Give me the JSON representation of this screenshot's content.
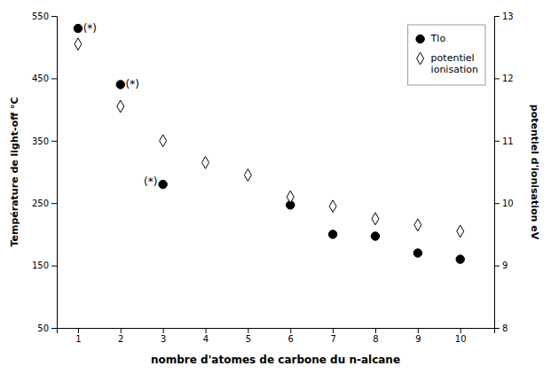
{
  "chart_data": {
    "type": "scatter",
    "xlabel": "nombre d'atomes de carbone du n-alcane",
    "ylabel": "Température de light-off °C",
    "y2label": "potentiel d'ionisation eV",
    "x": [
      1,
      2,
      3,
      4,
      5,
      6,
      7,
      8,
      9,
      10
    ],
    "series": [
      {
        "name": "Tlo",
        "color": "#000000",
        "marker": "circle",
        "values": [
          530,
          440,
          280,
          null,
          null,
          247,
          200,
          197,
          170,
          160
        ]
      },
      {
        "name": "potentiel\nionisation",
        "color": "#ffffff",
        "marker": "diamond",
        "axis": "y2",
        "values": [
          12.55,
          11.55,
          11.0,
          10.65,
          10.45,
          10.1,
          9.95,
          9.75,
          9.65,
          9.55
        ]
      }
    ],
    "annotations": [
      {
        "text": "(*)",
        "x": 1.12,
        "y": 530
      },
      {
        "text": "(*)",
        "x": 2.12,
        "y": 440
      },
      {
        "text": "(*)",
        "x": 2.55,
        "y": 283
      }
    ],
    "xlim": [
      0.5,
      10.8
    ],
    "xticks": [
      1,
      2,
      3,
      4,
      5,
      6,
      7,
      8,
      9,
      10
    ],
    "ylim": [
      50,
      550
    ],
    "yticks": [
      50,
      150,
      250,
      350,
      450,
      550
    ],
    "y2lim": [
      8,
      13
    ],
    "y2ticks": [
      8,
      9,
      10,
      11,
      12,
      13
    ],
    "legend": "upper right",
    "grid": false
  }
}
